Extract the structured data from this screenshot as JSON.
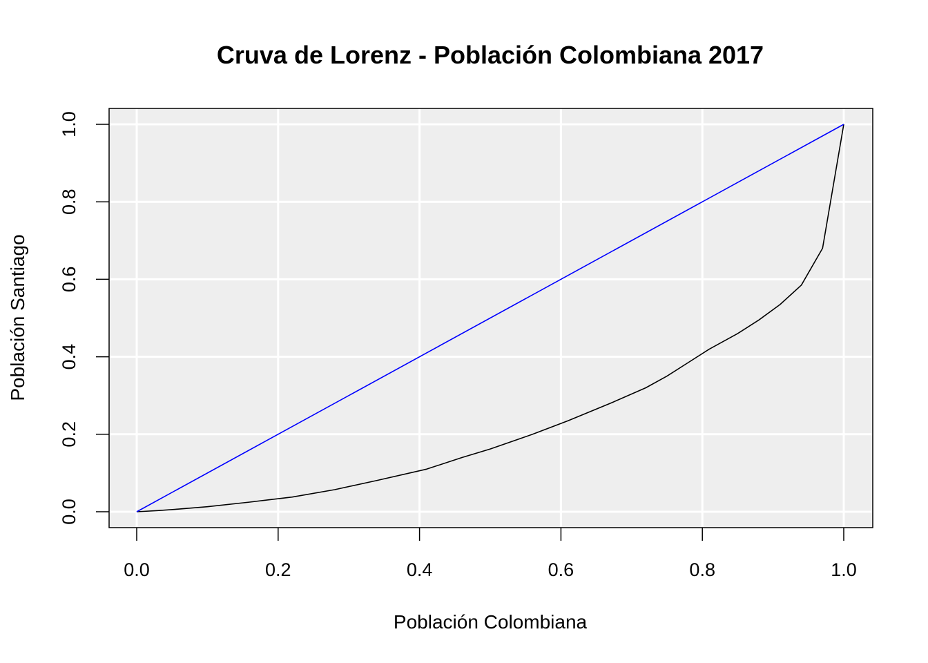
{
  "chart_data": {
    "type": "line",
    "title": "Cruva de Lorenz - Población Colombiana 2017",
    "xlabel": "Población Colombiana",
    "ylabel": "Población Santiago",
    "xlim": [
      0,
      1
    ],
    "ylim": [
      0,
      1
    ],
    "x_ticks": [
      "0.0",
      "0.2",
      "0.4",
      "0.6",
      "0.8",
      "1.0"
    ],
    "y_ticks": [
      "0.0",
      "0.2",
      "0.4",
      "0.6",
      "0.8",
      "1.0"
    ],
    "grid": true,
    "background": "#eeeeee",
    "series": [
      {
        "color": "#000000",
        "x": [
          0.0,
          0.03,
          0.06,
          0.1,
          0.16,
          0.22,
          0.28,
          0.34,
          0.41,
          0.46,
          0.5,
          0.56,
          0.61,
          0.67,
          0.72,
          0.75,
          0.78,
          0.81,
          0.85,
          0.88,
          0.91,
          0.94,
          0.97,
          1.0
        ],
        "y": [
          0.0,
          0.003,
          0.007,
          0.013,
          0.025,
          0.038,
          0.057,
          0.081,
          0.11,
          0.14,
          0.162,
          0.2,
          0.235,
          0.28,
          0.32,
          0.35,
          0.385,
          0.42,
          0.46,
          0.495,
          0.535,
          0.585,
          0.68,
          1.0
        ]
      },
      {
        "color": "#0000ff",
        "x": [
          0,
          1
        ],
        "y": [
          0,
          1
        ]
      }
    ]
  }
}
